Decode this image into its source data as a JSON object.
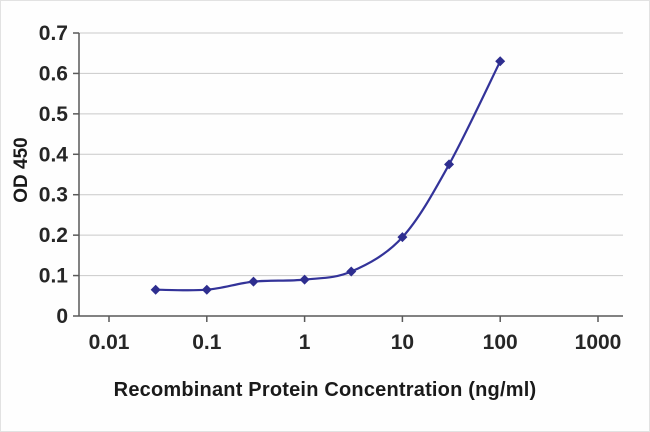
{
  "chart_data": {
    "type": "line",
    "title": "",
    "xlabel": "Recombinant Protein Concentration (ng/ml)",
    "ylabel": "OD 450",
    "x_scale": "log",
    "y_scale": "linear",
    "xlim": [
      0.01,
      1000
    ],
    "ylim": [
      0,
      0.7
    ],
    "x": [
      0.03,
      0.1,
      0.3,
      1,
      3,
      10,
      30,
      100
    ],
    "y": [
      0.065,
      0.065,
      0.085,
      0.09,
      0.11,
      0.195,
      0.375,
      0.63
    ],
    "x_ticks": [
      {
        "value": 0.01,
        "label": "0.01"
      },
      {
        "value": 0.1,
        "label": "0.1"
      },
      {
        "value": 1,
        "label": "1"
      },
      {
        "value": 10,
        "label": "10"
      },
      {
        "value": 100,
        "label": "100"
      },
      {
        "value": 1000,
        "label": "1000"
      }
    ],
    "y_ticks": [
      {
        "value": 0,
        "label": "0"
      },
      {
        "value": 0.1,
        "label": "0.1"
      },
      {
        "value": 0.2,
        "label": "0.2"
      },
      {
        "value": 0.3,
        "label": "0.3"
      },
      {
        "value": 0.4,
        "label": "0.4"
      },
      {
        "value": 0.5,
        "label": "0.5"
      },
      {
        "value": 0.6,
        "label": "0.6"
      },
      {
        "value": 0.7,
        "label": "0.7"
      }
    ],
    "grid": "horizontal",
    "legend": "none",
    "marker": "diamond",
    "colors": {
      "line": "#333399",
      "marker": "#2e2e8f",
      "grid": "#c9c9c9",
      "axis": "#595959",
      "tick_text": "#262626",
      "label_text": "#1a1a1a"
    }
  }
}
